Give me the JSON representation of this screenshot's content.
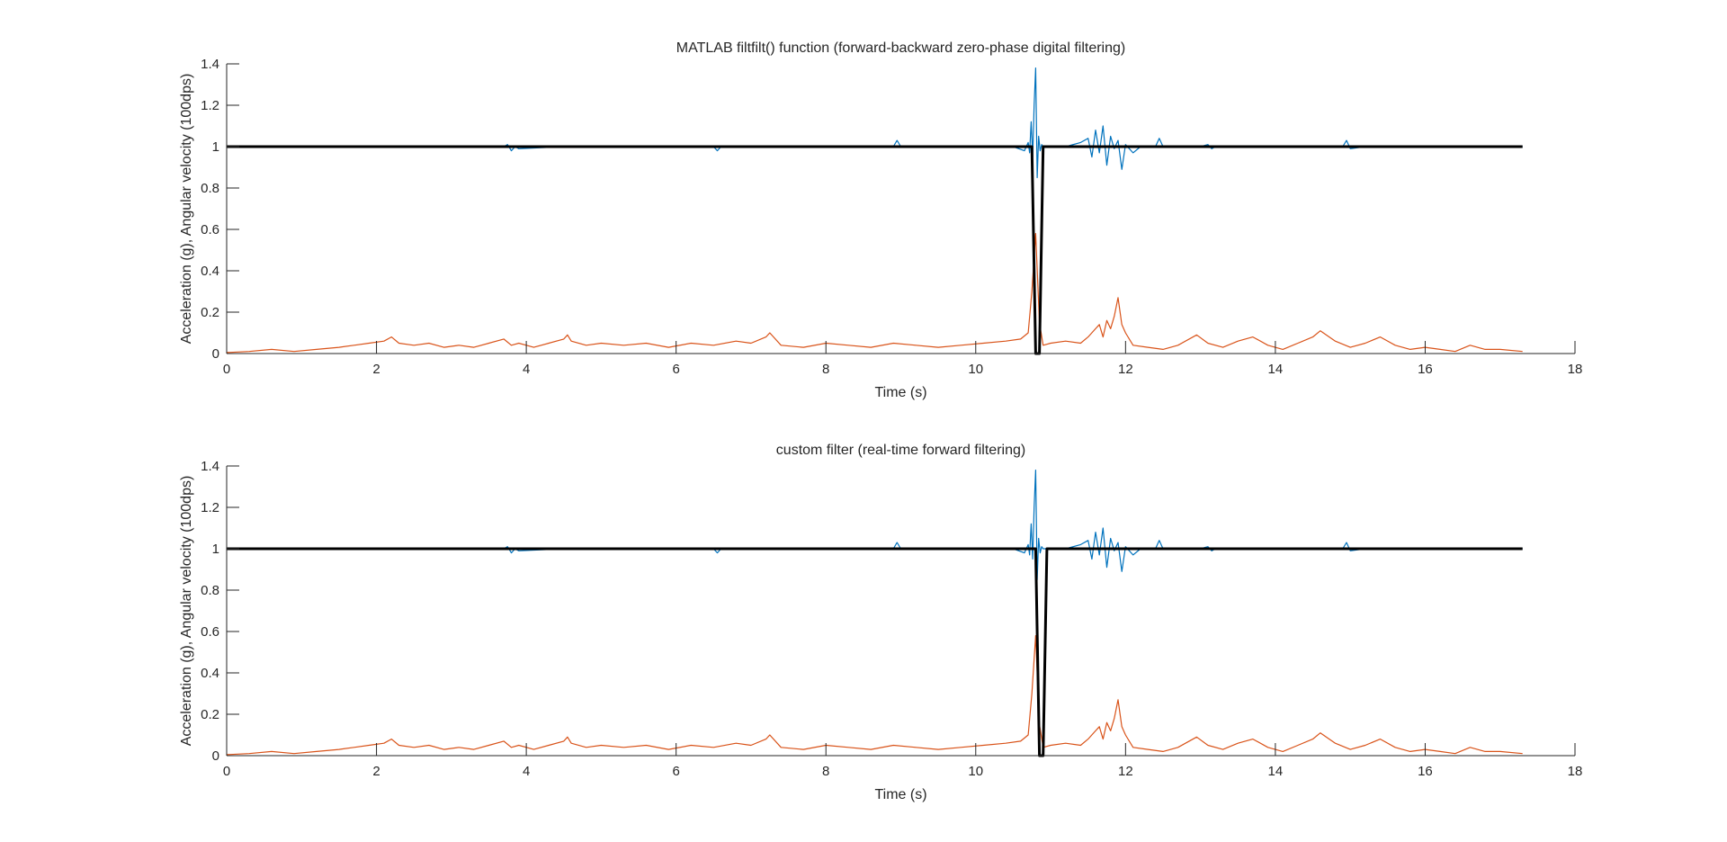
{
  "chart_data": [
    {
      "type": "line",
      "title": "MATLAB filtfilt() function (forward-backward zero-phase digital filtering)",
      "xlabel": "Time (s)",
      "ylabel": "Acceleration (g), Angular velocity (100dps)",
      "xlim": [
        0,
        18
      ],
      "ylim": [
        0,
        1.4
      ],
      "xticks": [
        0,
        2,
        4,
        6,
        8,
        10,
        12,
        14,
        16,
        18
      ],
      "yticks": [
        0,
        0.2,
        0.4,
        0.6,
        0.8,
        1,
        1.2,
        1.4
      ],
      "grid": false,
      "legend": false,
      "series": [
        {
          "color": "#0072BD",
          "x": [
            0.0,
            1.0,
            2.0,
            3.0,
            3.7,
            3.75,
            3.8,
            3.85,
            3.9,
            4.5,
            5.0,
            6.0,
            6.5,
            6.55,
            6.6,
            7.0,
            8.0,
            8.9,
            8.95,
            9.0,
            10.0,
            10.5,
            10.65,
            10.7,
            10.72,
            10.74,
            10.76,
            10.78,
            10.8,
            10.82,
            10.84,
            10.86,
            10.88,
            10.9,
            11.0,
            11.2,
            11.4,
            11.5,
            11.55,
            11.6,
            11.65,
            11.7,
            11.75,
            11.8,
            11.85,
            11.9,
            11.95,
            12.0,
            12.1,
            12.2,
            12.4,
            12.45,
            12.5,
            12.6,
            13.0,
            13.1,
            13.15,
            13.2,
            14.0,
            14.5,
            14.9,
            14.95,
            15.0,
            15.2,
            16.0,
            17.3
          ],
          "y": [
            1.0,
            1.0,
            1.0,
            1.0,
            1.0,
            1.01,
            0.98,
            1.0,
            0.99,
            1.0,
            1.0,
            1.0,
            1.0,
            0.98,
            1.0,
            1.0,
            1.0,
            1.0,
            1.03,
            1.0,
            1.0,
            1.0,
            0.98,
            1.02,
            0.97,
            1.12,
            0.95,
            1.2,
            1.38,
            0.85,
            1.05,
            0.98,
            1.01,
            1.0,
            1.0,
            1.0,
            1.02,
            1.04,
            0.95,
            1.08,
            0.97,
            1.1,
            0.91,
            1.05,
            0.99,
            1.03,
            0.89,
            1.01,
            0.97,
            1.0,
            1.0,
            1.04,
            1.0,
            1.0,
            1.0,
            1.01,
            0.99,
            1.0,
            1.0,
            1.0,
            1.0,
            1.03,
            0.99,
            1.0,
            1.0,
            1.0
          ]
        },
        {
          "color": "#D95319",
          "x": [
            0.0,
            0.3,
            0.6,
            0.9,
            1.2,
            1.5,
            1.7,
            1.9,
            2.1,
            2.2,
            2.3,
            2.5,
            2.7,
            2.9,
            3.1,
            3.3,
            3.5,
            3.7,
            3.8,
            3.9,
            4.1,
            4.3,
            4.5,
            4.55,
            4.6,
            4.8,
            5.0,
            5.3,
            5.6,
            5.9,
            6.2,
            6.5,
            6.8,
            7.0,
            7.2,
            7.25,
            7.4,
            7.7,
            8.0,
            8.3,
            8.6,
            8.9,
            9.2,
            9.5,
            9.8,
            10.1,
            10.4,
            10.6,
            10.7,
            10.75,
            10.8,
            10.85,
            10.9,
            11.0,
            11.2,
            11.4,
            11.5,
            11.6,
            11.65,
            11.7,
            11.75,
            11.8,
            11.85,
            11.9,
            11.95,
            12.0,
            12.1,
            12.3,
            12.5,
            12.7,
            12.95,
            13.1,
            13.3,
            13.5,
            13.7,
            13.9,
            14.1,
            14.3,
            14.5,
            14.6,
            14.8,
            15.0,
            15.2,
            15.4,
            15.6,
            15.8,
            16.0,
            16.2,
            16.4,
            16.6,
            16.8,
            17.0,
            17.3
          ],
          "y": [
            0.005,
            0.01,
            0.02,
            0.01,
            0.02,
            0.03,
            0.04,
            0.05,
            0.06,
            0.08,
            0.05,
            0.04,
            0.05,
            0.03,
            0.04,
            0.03,
            0.05,
            0.07,
            0.04,
            0.05,
            0.03,
            0.05,
            0.07,
            0.09,
            0.06,
            0.04,
            0.05,
            0.04,
            0.05,
            0.03,
            0.05,
            0.04,
            0.06,
            0.05,
            0.08,
            0.1,
            0.04,
            0.03,
            0.05,
            0.04,
            0.03,
            0.05,
            0.04,
            0.03,
            0.04,
            0.05,
            0.06,
            0.07,
            0.1,
            0.3,
            0.58,
            0.15,
            0.04,
            0.05,
            0.06,
            0.05,
            0.08,
            0.12,
            0.14,
            0.08,
            0.16,
            0.12,
            0.18,
            0.27,
            0.14,
            0.1,
            0.04,
            0.03,
            0.02,
            0.04,
            0.09,
            0.05,
            0.03,
            0.06,
            0.08,
            0.04,
            0.02,
            0.05,
            0.08,
            0.11,
            0.06,
            0.03,
            0.05,
            0.08,
            0.04,
            0.02,
            0.03,
            0.02,
            0.01,
            0.04,
            0.02,
            0.02,
            0.01
          ]
        },
        {
          "color": "#000000",
          "x": [
            0.0,
            10.75,
            10.8,
            10.85,
            10.9,
            17.3
          ],
          "y": [
            1.0,
            1.0,
            0.0,
            0.0,
            1.0,
            1.0
          ]
        }
      ]
    },
    {
      "type": "line",
      "title": "custom filter (real-time forward filtering)",
      "xlabel": "Time (s)",
      "ylabel": "Acceleration (g), Angular velocity (100dps)",
      "xlim": [
        0,
        18
      ],
      "ylim": [
        0,
        1.4
      ],
      "xticks": [
        0,
        2,
        4,
        6,
        8,
        10,
        12,
        14,
        16,
        18
      ],
      "yticks": [
        0,
        0.2,
        0.4,
        0.6,
        0.8,
        1,
        1.2,
        1.4
      ],
      "grid": false,
      "legend": false,
      "series": [
        {
          "color": "#0072BD",
          "x": [
            0.0,
            1.0,
            2.0,
            3.0,
            3.7,
            3.75,
            3.8,
            3.85,
            3.9,
            4.5,
            5.0,
            6.0,
            6.5,
            6.55,
            6.6,
            7.0,
            8.0,
            8.9,
            8.95,
            9.0,
            10.0,
            10.5,
            10.65,
            10.7,
            10.72,
            10.74,
            10.76,
            10.78,
            10.8,
            10.82,
            10.84,
            10.86,
            10.88,
            10.9,
            11.0,
            11.2,
            11.4,
            11.5,
            11.55,
            11.6,
            11.65,
            11.7,
            11.75,
            11.8,
            11.85,
            11.9,
            11.95,
            12.0,
            12.1,
            12.2,
            12.4,
            12.45,
            12.5,
            12.6,
            13.0,
            13.1,
            13.15,
            13.2,
            14.0,
            14.5,
            14.9,
            14.95,
            15.0,
            15.2,
            16.0,
            17.3
          ],
          "y": [
            1.0,
            1.0,
            1.0,
            1.0,
            1.0,
            1.01,
            0.98,
            1.0,
            0.99,
            1.0,
            1.0,
            1.0,
            1.0,
            0.98,
            1.0,
            1.0,
            1.0,
            1.0,
            1.03,
            1.0,
            1.0,
            1.0,
            0.98,
            1.02,
            0.97,
            1.12,
            0.95,
            1.2,
            1.38,
            0.85,
            1.05,
            0.98,
            1.01,
            1.0,
            1.0,
            1.0,
            1.02,
            1.04,
            0.95,
            1.08,
            0.97,
            1.1,
            0.91,
            1.05,
            0.99,
            1.03,
            0.89,
            1.01,
            0.97,
            1.0,
            1.0,
            1.04,
            1.0,
            1.0,
            1.0,
            1.01,
            0.99,
            1.0,
            1.0,
            1.0,
            1.0,
            1.03,
            0.99,
            1.0,
            1.0,
            1.0
          ]
        },
        {
          "color": "#D95319",
          "x": [
            0.0,
            0.3,
            0.6,
            0.9,
            1.2,
            1.5,
            1.7,
            1.9,
            2.1,
            2.2,
            2.3,
            2.5,
            2.7,
            2.9,
            3.1,
            3.3,
            3.5,
            3.7,
            3.8,
            3.9,
            4.1,
            4.3,
            4.5,
            4.55,
            4.6,
            4.8,
            5.0,
            5.3,
            5.6,
            5.9,
            6.2,
            6.5,
            6.8,
            7.0,
            7.2,
            7.25,
            7.4,
            7.7,
            8.0,
            8.3,
            8.6,
            8.9,
            9.2,
            9.5,
            9.8,
            10.1,
            10.4,
            10.6,
            10.7,
            10.75,
            10.8,
            10.85,
            10.9,
            11.0,
            11.2,
            11.4,
            11.5,
            11.6,
            11.65,
            11.7,
            11.75,
            11.8,
            11.85,
            11.9,
            11.95,
            12.0,
            12.1,
            12.3,
            12.5,
            12.7,
            12.95,
            13.1,
            13.3,
            13.5,
            13.7,
            13.9,
            14.1,
            14.3,
            14.5,
            14.6,
            14.8,
            15.0,
            15.2,
            15.4,
            15.6,
            15.8,
            16.0,
            16.2,
            16.4,
            16.6,
            16.8,
            17.0,
            17.3
          ],
          "y": [
            0.005,
            0.01,
            0.02,
            0.01,
            0.02,
            0.03,
            0.04,
            0.05,
            0.06,
            0.08,
            0.05,
            0.04,
            0.05,
            0.03,
            0.04,
            0.03,
            0.05,
            0.07,
            0.04,
            0.05,
            0.03,
            0.05,
            0.07,
            0.09,
            0.06,
            0.04,
            0.05,
            0.04,
            0.05,
            0.03,
            0.05,
            0.04,
            0.06,
            0.05,
            0.08,
            0.1,
            0.04,
            0.03,
            0.05,
            0.04,
            0.03,
            0.05,
            0.04,
            0.03,
            0.04,
            0.05,
            0.06,
            0.07,
            0.1,
            0.3,
            0.58,
            0.15,
            0.04,
            0.05,
            0.06,
            0.05,
            0.08,
            0.12,
            0.14,
            0.08,
            0.16,
            0.12,
            0.18,
            0.27,
            0.14,
            0.1,
            0.04,
            0.03,
            0.02,
            0.04,
            0.09,
            0.05,
            0.03,
            0.06,
            0.08,
            0.04,
            0.02,
            0.05,
            0.08,
            0.11,
            0.06,
            0.03,
            0.05,
            0.08,
            0.04,
            0.02,
            0.03,
            0.02,
            0.01,
            0.04,
            0.02,
            0.02,
            0.01
          ]
        },
        {
          "color": "#000000",
          "x": [
            0.0,
            10.8,
            10.85,
            10.9,
            10.95,
            17.3
          ],
          "y": [
            1.0,
            1.0,
            0.0,
            0.0,
            1.0,
            1.0
          ]
        }
      ]
    }
  ]
}
